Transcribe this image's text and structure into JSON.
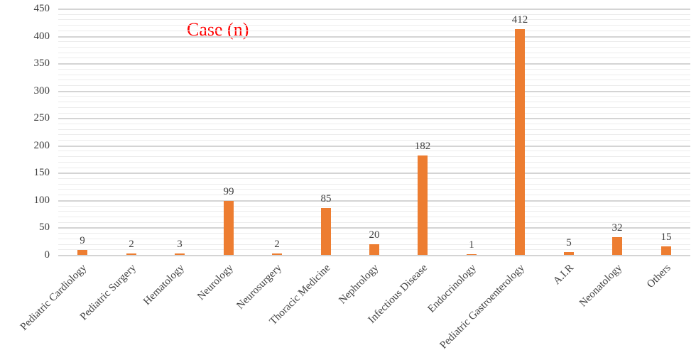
{
  "chart_data": {
    "type": "bar",
    "title": "Case (n)",
    "xlabel": "",
    "ylabel": "",
    "ylim": [
      0,
      450
    ],
    "yticks": [
      0,
      50,
      100,
      150,
      200,
      250,
      300,
      350,
      400,
      450
    ],
    "grid": true,
    "legend": "none",
    "bar_color": "#ed7d31",
    "title_color": "#ff0000",
    "categories": [
      "Pediatric Cardiology",
      "Pediatric Surgery",
      "Hematology",
      "Neurology",
      "Neurosurgery",
      "Thoracic Medicine",
      "Nephrology",
      "Infectious Disease",
      "Endocrinology",
      "Pediatric Gastroenterology",
      "A.I.R",
      "Neonatology",
      "Others"
    ],
    "values": [
      9,
      2,
      3,
      99,
      2,
      85,
      20,
      182,
      1,
      412,
      5,
      32,
      15
    ],
    "series": [
      {
        "name": "Case (n)",
        "values": [
          9,
          2,
          3,
          99,
          2,
          85,
          20,
          182,
          1,
          412,
          5,
          32,
          15
        ]
      }
    ]
  }
}
